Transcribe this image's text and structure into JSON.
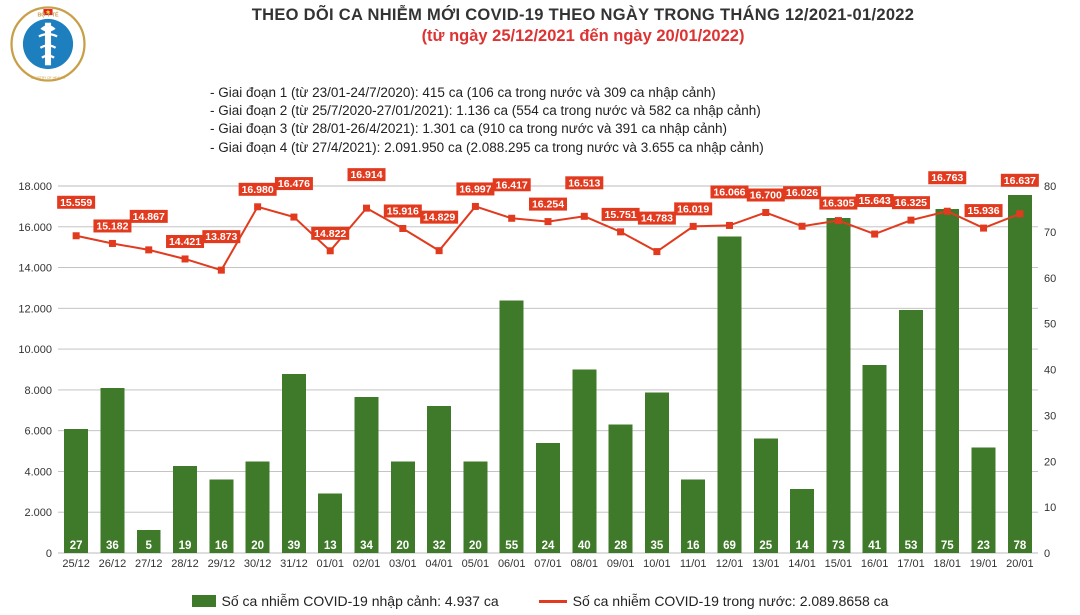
{
  "logo": {
    "outer_color": "#c8a04a",
    "inner_color": "#1e7fbf",
    "flag_red": "#dd2222",
    "flag_yellow": "#ffdd33",
    "top_text": "BỘ Y TẾ",
    "bottom_text": "MINISTRY OF HEALTH"
  },
  "titles": {
    "main": "THEO DÕI CA NHIỄM MỚI COVID-19 THEO NGÀY TRONG THÁNG 12/2021-01/2022",
    "sub": "(từ ngày 25/12/2021 đến ngày 20/01/2022)",
    "main_color": "#333333",
    "sub_color": "#dd3333"
  },
  "phases": [
    "- Giai đoạn 1 (từ 23/01-24/7/2020): 415 ca (106 ca trong nước và 309 ca nhập cảnh)",
    "- Giai đoạn 2 (từ 25/7/2020-27/01/2021): 1.136 ca (554 ca trong nước và 582 ca nhập cảnh)",
    "- Giai đoạn 3 (từ 28/01-26/4/2021): 1.301 ca (910 ca trong nước và 391 ca nhập cảnh)",
    "- Giai đoạn 4 (từ 27/4/2021): 2.091.950 ca (2.088.295 ca trong nước và 3.655 ca nhập cảnh)"
  ],
  "chart": {
    "type": "combo-bar-line",
    "background_color": "#ffffff",
    "grid_color": "#bbbbbb",
    "axis_color": "#666666",
    "font_family": "Arial",
    "axis_fontsize": 11,
    "datalabel_fontsize": 10.5,
    "barlabel_fontsize": 11.5,
    "left_axis": {
      "min": 0,
      "max": 18000,
      "step": 2000
    },
    "right_axis": {
      "min": 0,
      "max": 80,
      "step": 10
    },
    "categories": [
      "25/12",
      "26/12",
      "27/12",
      "28/12",
      "29/12",
      "30/12",
      "31/12",
      "01/01",
      "02/01",
      "03/01",
      "04/01",
      "05/01",
      "06/01",
      "07/01",
      "08/01",
      "09/01",
      "10/01",
      "11/01",
      "12/01",
      "13/01",
      "14/01",
      "15/01",
      "16/01",
      "17/01",
      "18/01",
      "19/01",
      "20/01"
    ],
    "bar": {
      "color": "#3f7a2a",
      "label_color": "#ffffff",
      "width_ratio": 0.66,
      "values": [
        27,
        36,
        5,
        19,
        16,
        20,
        39,
        13,
        34,
        20,
        32,
        20,
        55,
        24,
        40,
        28,
        35,
        16,
        69,
        25,
        14,
        73,
        41,
        53,
        75,
        23,
        78
      ],
      "max_scale": 80
    },
    "line": {
      "color": "#e23a1f",
      "marker": "square",
      "marker_size": 6,
      "label_bg": "#e23a1f",
      "label_color": "#ffffff",
      "values": [
        15559,
        15182,
        14867,
        14421,
        13873,
        16980,
        16476,
        14822,
        16914,
        15916,
        14829,
        16997,
        16417,
        16254,
        16513,
        15751,
        14783,
        16019,
        16066,
        16700,
        16026,
        16305,
        15643,
        16325,
        16763,
        15936,
        16637
      ],
      "labels": [
        "15.559",
        "15.182",
        "14.867",
        "14.421",
        "13.873",
        "16.980",
        "16.476",
        "14.822",
        "16.914",
        "15.916",
        "14.829",
        "16.997",
        "16.417",
        "16.254",
        "16.513",
        "15.751",
        "14.783",
        "16.019",
        "16.066",
        "16.700",
        "16.026",
        "16.305",
        "15.643",
        "16.325",
        "16.763",
        "15.936",
        "16.637"
      ]
    }
  },
  "legend": {
    "bar_label": "Số ca nhiễm COVID-19 nhập cảnh: 4.937 ca",
    "line_label": "Số ca nhiễm COVID-19 trong nước: 2.089.8658 ca",
    "bar_color": "#3f7a2a",
    "line_color": "#e23a1f"
  }
}
